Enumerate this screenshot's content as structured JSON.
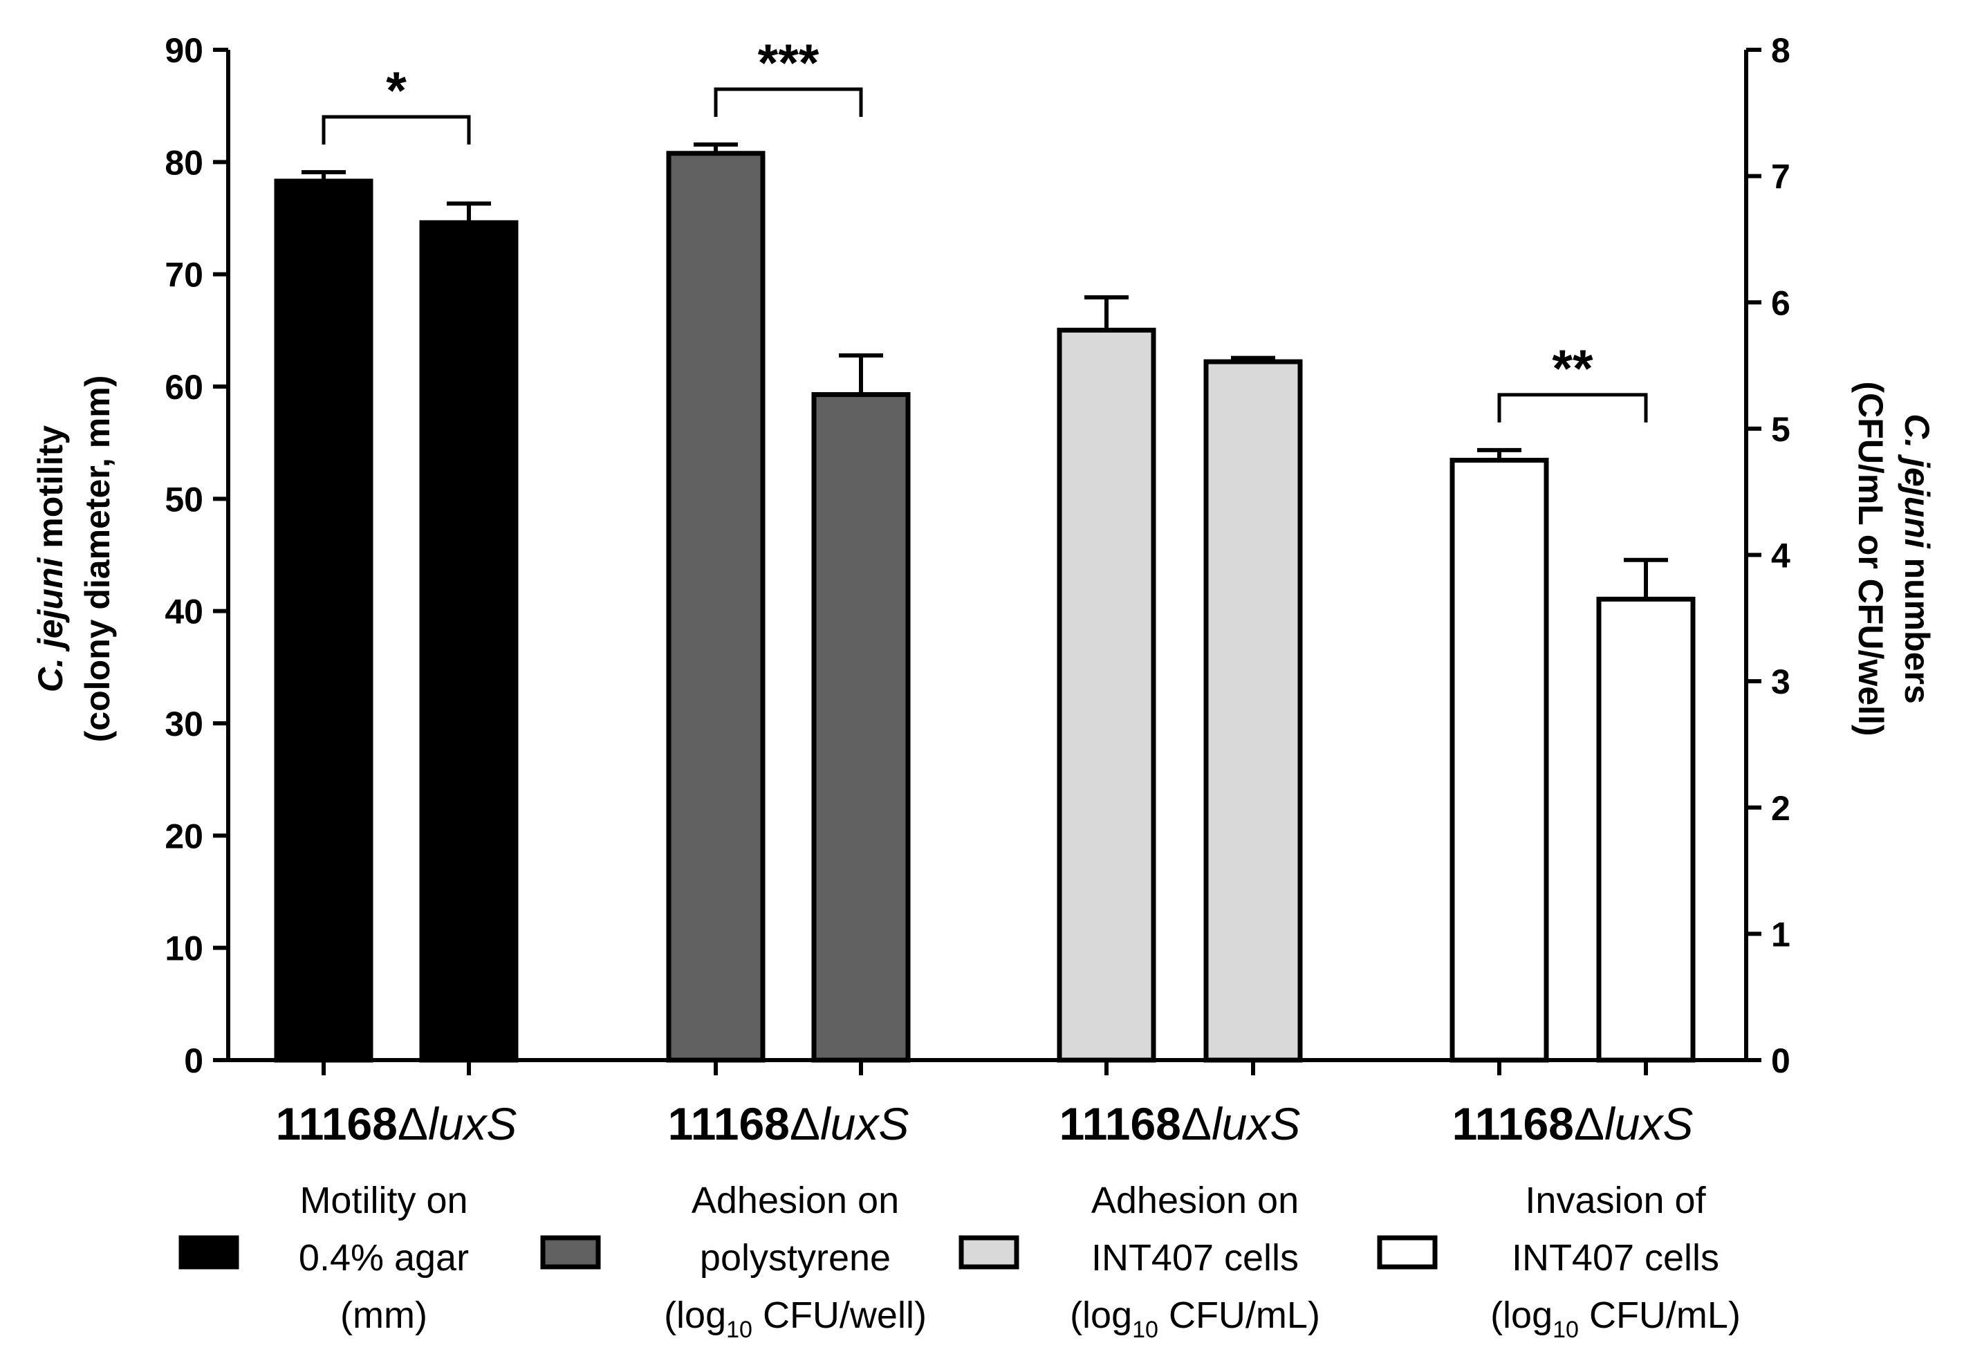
{
  "chart_data": {
    "type": "bar",
    "groups": [
      {
        "name": "Motility on 0.4% agar (mm)",
        "axis": "left",
        "fill": "#000000",
        "bars": [
          {
            "strain": "11168",
            "value": 78.3,
            "error": 0.8
          },
          {
            "strain": "ΔluxS",
            "value": 74.6,
            "error": 1.7
          }
        ],
        "significance": "*"
      },
      {
        "name": "Adhesion on polystyrene (log10 CFU/well)",
        "axis": "right",
        "fill": "#606060",
        "bars": [
          {
            "strain": "11168",
            "value": 7.18,
            "error": 0.07
          },
          {
            "strain": "ΔluxS",
            "value": 5.27,
            "error": 0.31
          }
        ],
        "significance": "***"
      },
      {
        "name": "Adhesion on INT407 cells (log10 CFU/mL)",
        "axis": "right",
        "fill": "#d9d9d9",
        "bars": [
          {
            "strain": "11168",
            "value": 5.78,
            "error": 0.26
          },
          {
            "strain": "ΔluxS",
            "value": 5.53,
            "error": 0.03
          }
        ],
        "significance": null
      },
      {
        "name": "Invasion of INT407 cells (log10 CFU/mL)",
        "axis": "right",
        "fill": "#ffffff",
        "bars": [
          {
            "strain": "11168",
            "value": 4.75,
            "error": 0.08
          },
          {
            "strain": "ΔluxS",
            "value": 3.65,
            "error": 0.31
          }
        ],
        "significance": "**"
      }
    ],
    "left_axis": {
      "label_italic": "C. jejuni",
      "label_rest": " motility",
      "label_line2": "(colony diameter, mm)",
      "ylim": [
        0,
        90
      ],
      "ticks": [
        "0",
        "10",
        "20",
        "30",
        "40",
        "50",
        "60",
        "70",
        "80",
        "90"
      ]
    },
    "right_axis": {
      "label_italic": "C. jejuni",
      "label_rest": " numbers",
      "label_line2": "(CFU/mL or CFU/well)",
      "ylim": [
        0,
        8
      ],
      "ticks": [
        "0",
        "1",
        "2",
        "3",
        "4",
        "5",
        "6",
        "7",
        "8"
      ]
    },
    "category_label": {
      "strain": "11168",
      "delta": "Δ",
      "mutant": "luxS"
    },
    "legend": [
      {
        "lines": [
          {
            "text": "Motility on"
          },
          {
            "text": "0.4% agar"
          },
          {
            "text": "(mm)"
          }
        ],
        "fill": "#000000"
      },
      {
        "lines": [
          {
            "text": "Adhesion on"
          },
          {
            "text": "polystyrene"
          },
          {
            "pre": "(log",
            "sub": "10",
            "post": " CFU/well)"
          }
        ],
        "fill": "#606060"
      },
      {
        "lines": [
          {
            "text": "Adhesion on"
          },
          {
            "text": "INT407 cells"
          },
          {
            "pre": "(log",
            "sub": "10",
            "post": " CFU/mL)"
          }
        ],
        "fill": "#d9d9d9"
      },
      {
        "lines": [
          {
            "text": "Invasion of"
          },
          {
            "text": "INT407 cells"
          },
          {
            "pre": "(log",
            "sub": "10",
            "post": " CFU/mL)"
          }
        ],
        "fill": "#ffffff"
      }
    ]
  }
}
